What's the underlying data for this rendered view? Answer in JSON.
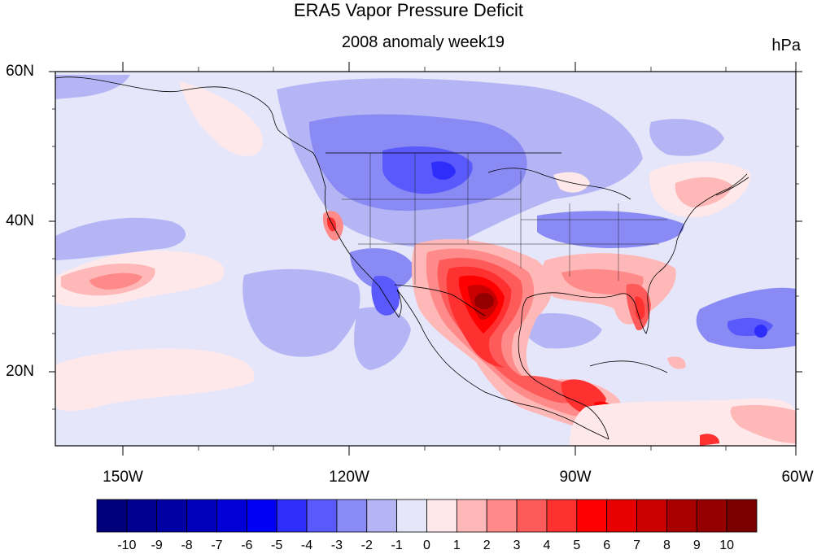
{
  "figure": {
    "title": "ERA5 Vapor Pressure Deficit",
    "subtitle": "2008 anomaly week19",
    "units": "hPa"
  },
  "map": {
    "projection": "cylindrical equidistant",
    "lon_range": [
      -160,
      -60
    ],
    "lat_range": [
      10,
      60
    ],
    "lat_labels": [
      "60N",
      "40N",
      "20N"
    ],
    "lon_labels": [
      "150W",
      "120W",
      "90W",
      "60W"
    ]
  },
  "colorbar": {
    "levels": [
      "-10",
      "-9",
      "-8",
      "-7",
      "-6",
      "-5",
      "-4",
      "-3",
      "-2",
      "-1",
      "0",
      "1",
      "2",
      "3",
      "4",
      "5",
      "6",
      "7",
      "8",
      "9",
      "10"
    ],
    "colors": [
      "#00007a",
      "#00008f",
      "#0000a3",
      "#0000b8",
      "#0000d6",
      "#0000f5",
      "#2e2efc",
      "#5a5afc",
      "#8a8af5",
      "#b5b5f5",
      "#e6e6fb",
      "#ffe8ea",
      "#ffb8b8",
      "#ff8a8a",
      "#ff5a5a",
      "#ff3030",
      "#ff0000",
      "#e60000",
      "#c80000",
      "#a80000",
      "#940000",
      "#7a0000"
    ]
  },
  "anomaly_regions": [
    {
      "feature": "Texas / northern Mexico",
      "class": "6 to 9"
    },
    {
      "feature": "Southern Mexico",
      "class": "4 to 7"
    },
    {
      "feature": "Florida",
      "class": "4 to 6"
    },
    {
      "feature": "Northeast US",
      "class": "1 to 3"
    },
    {
      "feature": "Northern Rockies / Plains",
      "class": "-2 to -5"
    },
    {
      "feature": "Pacific subtropics west of Baja",
      "class": "-1 to -3"
    },
    {
      "feature": "Atlantic east of Florida",
      "class": "-2 to -4"
    }
  ]
}
